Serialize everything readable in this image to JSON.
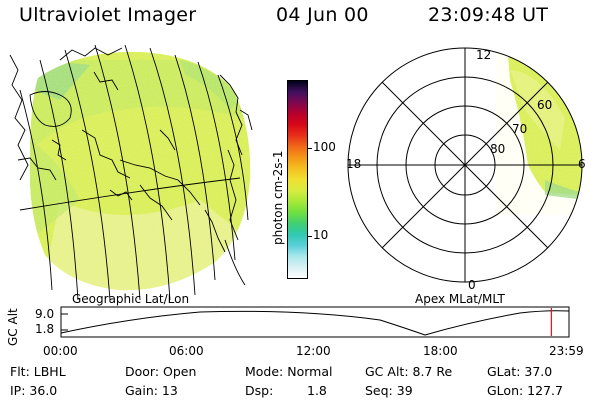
{
  "header": {
    "title": "Ultraviolet Imager",
    "date": "04 Jun 00",
    "time": "23:09:48 UT"
  },
  "colorbar": {
    "label": "photon cm-2s-1",
    "ticks": [
      {
        "label": "100",
        "value": 100
      },
      {
        "label": "10",
        "value": 10
      }
    ],
    "colors": [
      "#ffffff",
      "#d8f0f4",
      "#a8e8ec",
      "#58d0d8",
      "#30c8b0",
      "#40d070",
      "#70e040",
      "#a8e838",
      "#d8ec40",
      "#f0e030",
      "#f4c020",
      "#f49818",
      "#f06818",
      "#e83018",
      "#d80818",
      "#b8002c",
      "#800850",
      "#401060",
      "#000018"
    ]
  },
  "left_panel": {
    "label": "Geographic Lat/Lon"
  },
  "right_panel": {
    "label": "Apex MLat/MLT",
    "mlt_labels": {
      "top": "12",
      "left": "18",
      "right": "6",
      "bottom": "0"
    },
    "lat_labels": [
      "60",
      "70",
      "80"
    ]
  },
  "timeline": {
    "axis_title": "GC Alt",
    "y_ticks": [
      "9.0",
      "1.8"
    ],
    "x_ticks": [
      "00:00",
      "06:00",
      "12:00",
      "18:00",
      "23:59"
    ],
    "marker_time": "23:09",
    "marker_color": "#e01010"
  },
  "info": {
    "filter": "Flt: LBHL",
    "door": "Door: Open",
    "mode": "Mode: Normal",
    "gc_alt": "GC Alt: 8.7 Re",
    "glat": "GLat: 37.0",
    "ip": "IP: 36.0",
    "gain": "Gain: 13",
    "dsp_label": "Dsp:",
    "dsp_value": "1.8",
    "seq": "Seq: 39",
    "glon": "GLon: 127.7"
  }
}
